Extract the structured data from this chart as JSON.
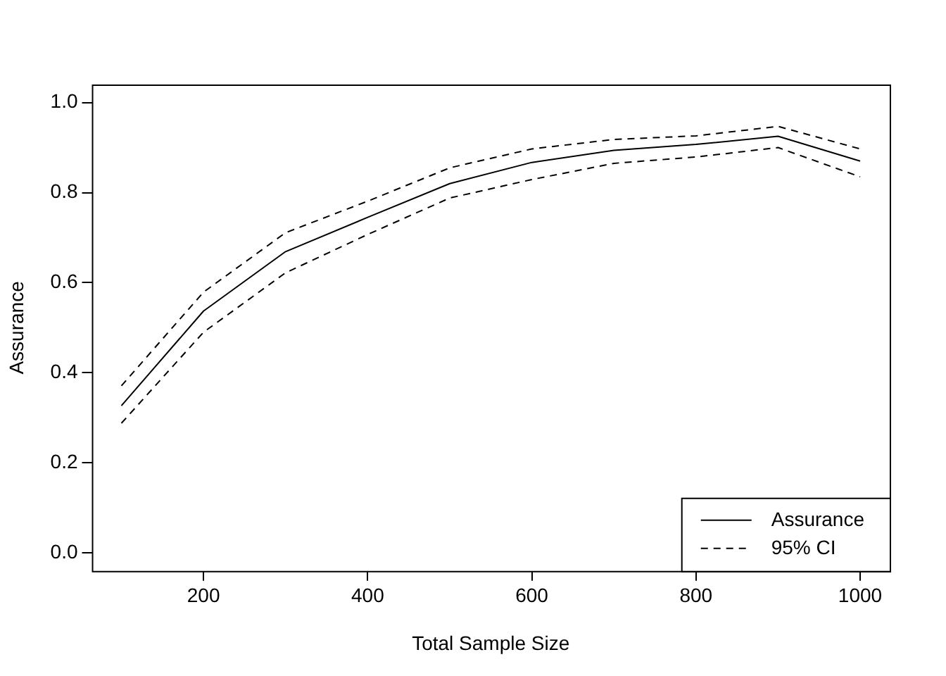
{
  "chart_data": {
    "type": "line",
    "xlabel": "Total Sample Size",
    "ylabel": "Assurance",
    "x": [
      100,
      200,
      300,
      400,
      500,
      600,
      700,
      800,
      900,
      1000
    ],
    "series": [
      {
        "name": "Assurance",
        "color": "#000000",
        "line_style": "solid",
        "values": [
          0.327,
          0.537,
          0.669,
          0.745,
          0.82,
          0.867,
          0.894,
          0.907,
          0.925,
          0.87
        ]
      },
      {
        "name": "95% CI",
        "color": "#000000",
        "line_style": "dashed",
        "values": [
          0.371,
          0.579,
          0.711,
          0.781,
          0.855,
          0.897,
          0.918,
          0.926,
          0.947,
          0.897
        ]
      },
      {
        "color": "#000000",
        "line_style": "dashed",
        "values": [
          0.288,
          0.49,
          0.622,
          0.707,
          0.788,
          0.829,
          0.865,
          0.879,
          0.9,
          0.835
        ]
      }
    ],
    "xlim": [
      64,
      1036
    ],
    "xticks": [
      200,
      400,
      600,
      800,
      1000
    ],
    "ylim": [
      -0.04,
      1.04
    ],
    "yticks": [
      {
        "value": 0,
        "label": "0.0"
      },
      {
        "value": 0.2,
        "label": "0.2"
      },
      {
        "value": 0.4,
        "label": "0.4"
      },
      {
        "value": 0.6,
        "label": "0.6"
      },
      {
        "value": 0.8,
        "label": "0.8"
      },
      {
        "value": 1,
        "label": "1.0"
      }
    ],
    "grid": false,
    "legend": "bottom right",
    "marker": "none"
  }
}
